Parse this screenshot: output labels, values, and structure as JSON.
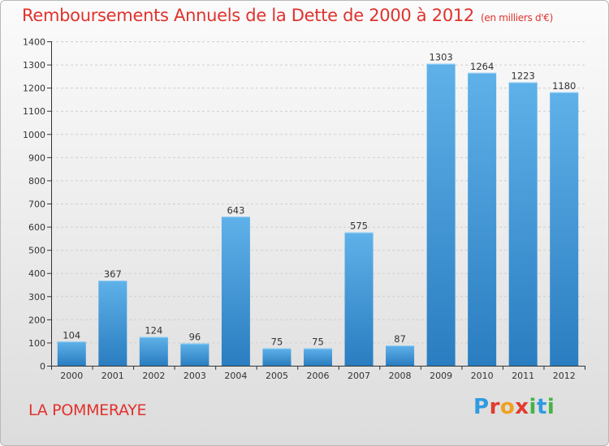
{
  "header": {
    "title": "Remboursements Annuels de la Dette de 2000 à 2012",
    "unit": "(en milliers d'€)"
  },
  "footer": {
    "commune": "LA POMMERAYE",
    "logo_letters": [
      {
        "ch": "P",
        "color": "#2f9be0"
      },
      {
        "ch": "r",
        "color": "#e23a2f"
      },
      {
        "ch": "o",
        "color": "#f0a020"
      },
      {
        "ch": "x",
        "color": "#e23a2f"
      },
      {
        "ch": "i",
        "color": "#47b344"
      },
      {
        "ch": "t",
        "color": "#2f9be0"
      },
      {
        "ch": "i",
        "color": "#47b344"
      }
    ]
  },
  "colors": {
    "title": "#e0322d",
    "bar_top": "#5fb1e9",
    "bar_bottom": "#2a7dc0",
    "grid": "#cfcfcf",
    "axis": "#333333"
  },
  "chart_data": {
    "type": "bar",
    "title": "Remboursements Annuels de la Dette de 2000 à 2012",
    "categories": [
      "2000",
      "2001",
      "2002",
      "2003",
      "2004",
      "2005",
      "2006",
      "2007",
      "2008",
      "2009",
      "2010",
      "2011",
      "2012"
    ],
    "values": [
      104,
      367,
      124,
      96,
      643,
      75,
      75,
      575,
      87,
      1303,
      1264,
      1223,
      1180
    ],
    "ylim": [
      0,
      1400
    ],
    "yticks": [
      0,
      100,
      200,
      300,
      400,
      500,
      600,
      700,
      800,
      900,
      1000,
      1100,
      1200,
      1300,
      1400
    ],
    "grid": true,
    "xlabel": "",
    "ylabel": ""
  }
}
